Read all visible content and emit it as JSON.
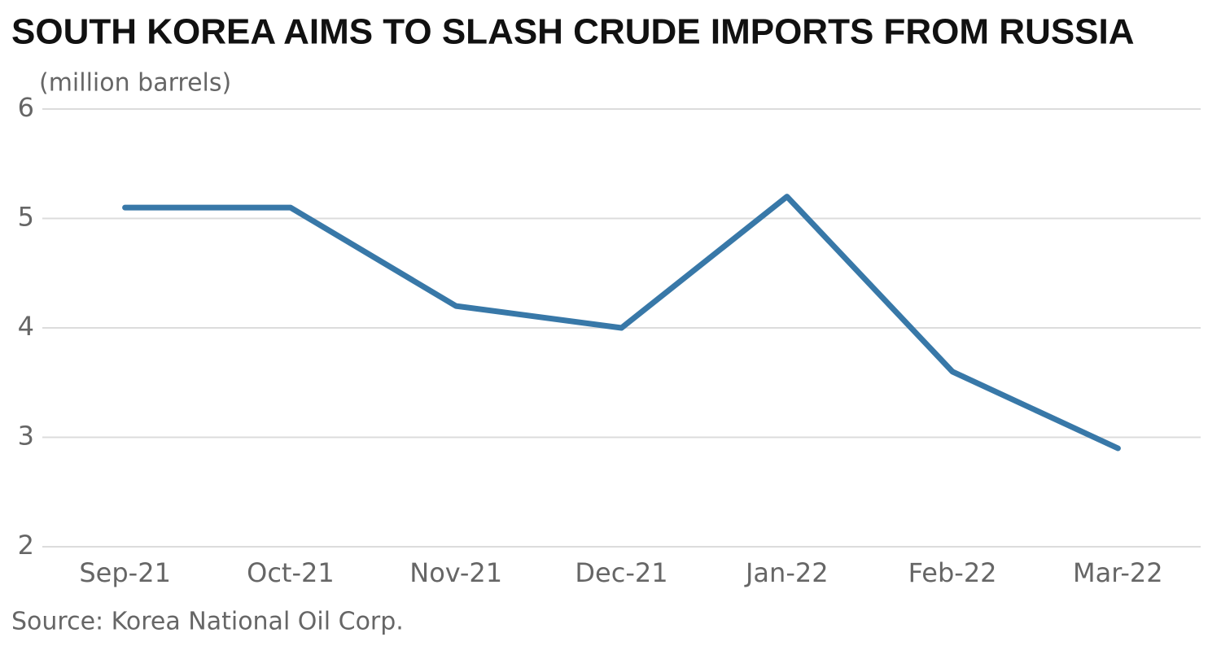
{
  "chart_data": {
    "type": "line",
    "title": "SOUTH KOREA AIMS TO SLASH CRUDE IMPORTS FROM RUSSIA",
    "subtitle": "(million barrels)",
    "source": "Source: Korea National Oil Corp.",
    "categories": [
      "Sep-21",
      "Oct-21",
      "Nov-21",
      "Dec-21",
      "Jan-22",
      "Feb-22",
      "Mar-22"
    ],
    "values": [
      5.1,
      5.1,
      4.2,
      4.0,
      5.2,
      3.6,
      2.9
    ],
    "color": "#3878a8",
    "ylim": [
      2,
      6
    ],
    "yticks": [
      2,
      3,
      4,
      5,
      6
    ],
    "grid": true
  }
}
